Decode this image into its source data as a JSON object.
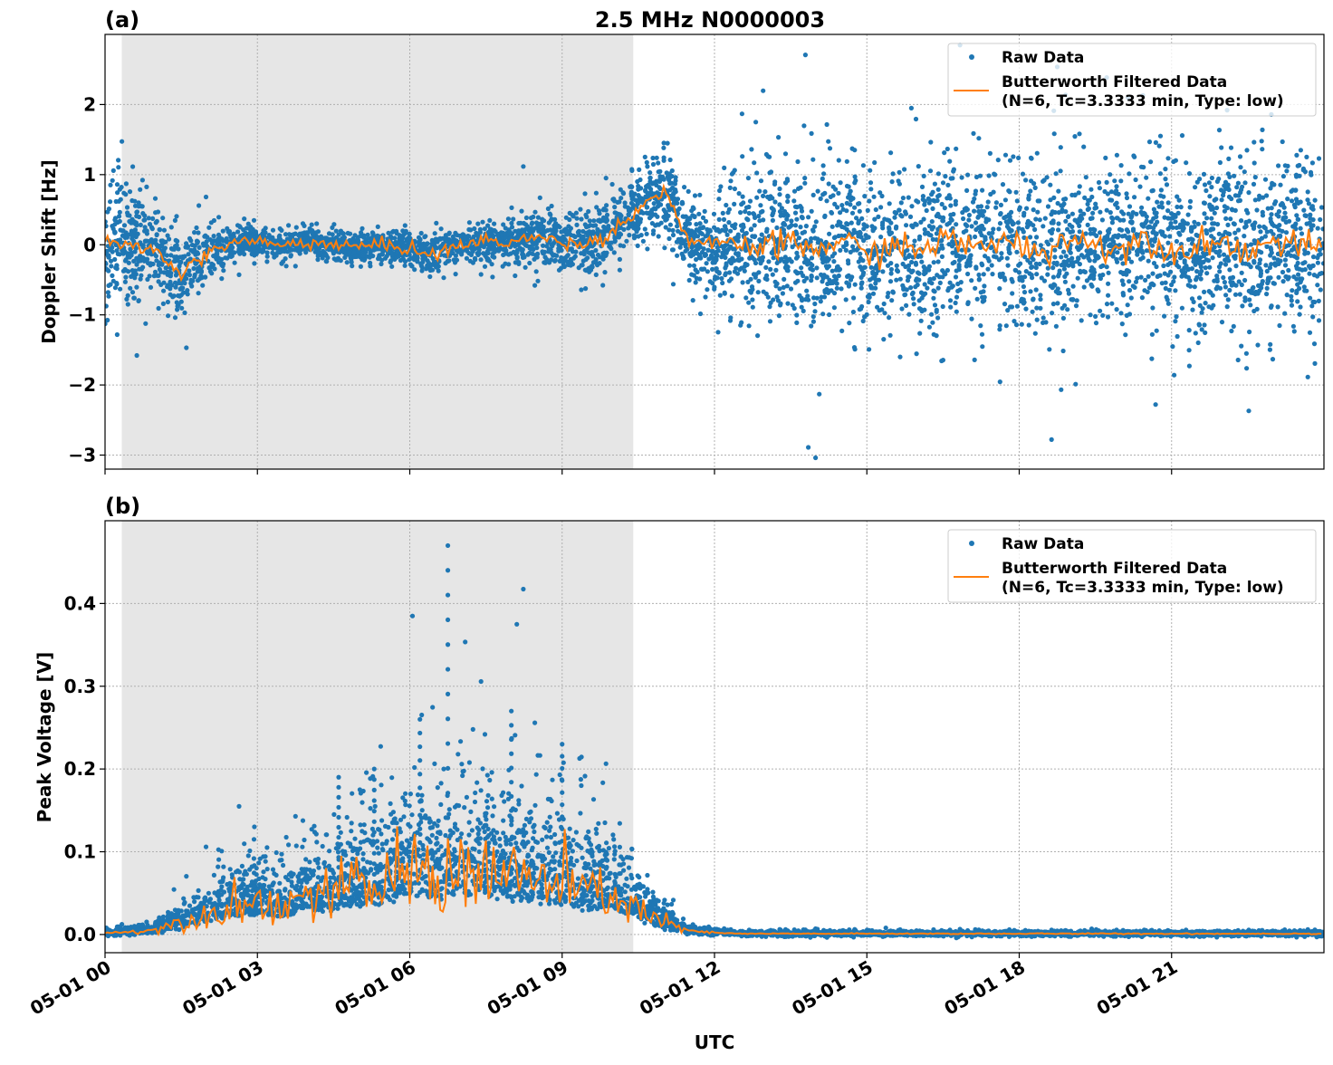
{
  "title": "2.5 MHz N0000003",
  "colors": {
    "raw": "#1f77b4",
    "filtered": "#ff7f0e",
    "shade": "#e6e6e6"
  },
  "chart_data": [
    {
      "type": "scatter",
      "panel_label": "(a)",
      "title": "2.5 MHz N0000003",
      "xlabel": "",
      "ylabel": "Doppler Shift [Hz]",
      "xlim_hours": [
        0,
        24
      ],
      "ylim": [
        -3.2,
        3.0
      ],
      "yticks": [
        2,
        1,
        0,
        -1,
        -2,
        -3
      ],
      "ytick_labels": [
        "2",
        "1",
        "0",
        "−1",
        "−2",
        "−3"
      ],
      "grid": true,
      "legend": "top-right",
      "shaded_interval_hours": [
        0.33,
        10.4
      ],
      "series": [
        {
          "name": "Raw Data",
          "kind": "points",
          "x_step_hours": 0.5,
          "center": [
            0,
            0,
            -0.1,
            -0.4,
            -0.15,
            0.05,
            0.05,
            -0.02,
            0.05,
            0,
            -0.03,
            0,
            -0.05,
            -0.15,
            0,
            0.05,
            0.05,
            0.1,
            0.05,
            0,
            0.2,
            0.5,
            0.8,
            0.05,
            0,
            0,
            -0.05,
            0.05,
            -0.1,
            0.1,
            -0.15,
            0,
            -0.1,
            0.1,
            -0.05,
            0.05,
            0,
            -0.1,
            0.1,
            0,
            -0.05,
            0.1,
            -0.1,
            0,
            0.05,
            -0.1,
            0.05,
            0,
            -0.1
          ],
          "spread": [
            0.45,
            0.35,
            0.3,
            0.3,
            0.2,
            0.12,
            0.1,
            0.1,
            0.1,
            0.1,
            0.1,
            0.1,
            0.12,
            0.15,
            0.12,
            0.12,
            0.15,
            0.18,
            0.2,
            0.2,
            0.2,
            0.25,
            0.3,
            0.3,
            0.3,
            0.45,
            0.55,
            0.55,
            0.55,
            0.55,
            0.55,
            0.55,
            0.55,
            0.55,
            0.55,
            0.55,
            0.55,
            0.55,
            0.55,
            0.55,
            0.55,
            0.55,
            0.55,
            0.55,
            0.55,
            0.55,
            0.55,
            0.55,
            0.55
          ]
        },
        {
          "name": "Butterworth Filtered Data\n(N=6, Tc=3.3333 min, Type: low)",
          "kind": "line",
          "x_step_hours": 0.5,
          "values": [
            0,
            0,
            -0.1,
            -0.4,
            -0.15,
            0.05,
            0.05,
            -0.02,
            0.05,
            0,
            -0.03,
            0,
            -0.05,
            -0.15,
            0,
            0.05,
            0.05,
            0.1,
            0.05,
            0,
            0.2,
            0.5,
            0.8,
            0.05,
            0,
            0,
            -0.05,
            0.05,
            -0.1,
            0.1,
            -0.15,
            0,
            -0.1,
            0.1,
            -0.05,
            0.05,
            0,
            -0.1,
            0.1,
            0,
            -0.05,
            0.1,
            -0.1,
            0,
            0.05,
            -0.1,
            0.05,
            0,
            -0.1
          ]
        }
      ]
    },
    {
      "type": "scatter",
      "panel_label": "(b)",
      "xlabel": "UTC",
      "ylabel": "Peak Voltage [V]",
      "xlim_hours": [
        0,
        24
      ],
      "ylim": [
        -0.022,
        0.5
      ],
      "yticks": [
        0.0,
        0.1,
        0.2,
        0.3,
        0.4
      ],
      "ytick_labels": [
        "0.0",
        "0.1",
        "0.2",
        "0.3",
        "0.4"
      ],
      "xticks_hours": [
        0,
        3,
        6,
        9,
        12,
        15,
        18,
        21
      ],
      "xtick_labels": [
        "05-01 00",
        "05-01 03",
        "05-01 06",
        "05-01 09",
        "05-01 12",
        "05-01 15",
        "05-01 18",
        "05-01 21"
      ],
      "grid": true,
      "legend": "top-right",
      "shaded_interval_hours": [
        0.33,
        10.4
      ],
      "series": [
        {
          "name": "Raw Data",
          "kind": "points",
          "x_step_hours": 0.5,
          "center": [
            0.002,
            0.003,
            0.006,
            0.015,
            0.025,
            0.035,
            0.04,
            0.035,
            0.05,
            0.045,
            0.06,
            0.06,
            0.08,
            0.07,
            0.08,
            0.075,
            0.07,
            0.065,
            0.06,
            0.05,
            0.05,
            0.03,
            0.015,
            0.004,
            0.002,
            0.001,
            0.001,
            0.001,
            0.001,
            0.001,
            0.001,
            0.001,
            0.001,
            0.001,
            0.001,
            0.001,
            0.001,
            0.001,
            0.001,
            0.001,
            0.001,
            0.001,
            0.001,
            0.001,
            0.001,
            0.001,
            0.001,
            0.001,
            0.001
          ],
          "peaks": [
            {
              "x_hours": 6.75,
              "y": 0.47
            },
            {
              "x_hours": 6.2,
              "y": 0.26
            },
            {
              "x_hours": 8.0,
              "y": 0.27
            },
            {
              "x_hours": 9.0,
              "y": 0.23
            },
            {
              "x_hours": 5.3,
              "y": 0.2
            },
            {
              "x_hours": 4.6,
              "y": 0.19
            }
          ]
        },
        {
          "name": "Butterworth Filtered Data\n(N=6, Tc=3.3333 min, Type: low)",
          "kind": "line",
          "x_step_hours": 0.5,
          "values": [
            0.002,
            0.003,
            0.006,
            0.015,
            0.025,
            0.035,
            0.04,
            0.035,
            0.05,
            0.045,
            0.06,
            0.06,
            0.08,
            0.07,
            0.08,
            0.075,
            0.07,
            0.065,
            0.06,
            0.05,
            0.05,
            0.03,
            0.015,
            0.004,
            0.002,
            0.001,
            0.001,
            0.001,
            0.001,
            0.001,
            0.001,
            0.001,
            0.001,
            0.001,
            0.001,
            0.001,
            0.001,
            0.001,
            0.001,
            0.001,
            0.001,
            0.001,
            0.001,
            0.001,
            0.001,
            0.001,
            0.001,
            0.001,
            0.001
          ]
        }
      ]
    }
  ],
  "legend": {
    "raw": "Raw Data",
    "filtered_line1": "Butterworth Filtered Data",
    "filtered_line2": "(N=6, Tc=3.3333 min, Type: low)"
  }
}
